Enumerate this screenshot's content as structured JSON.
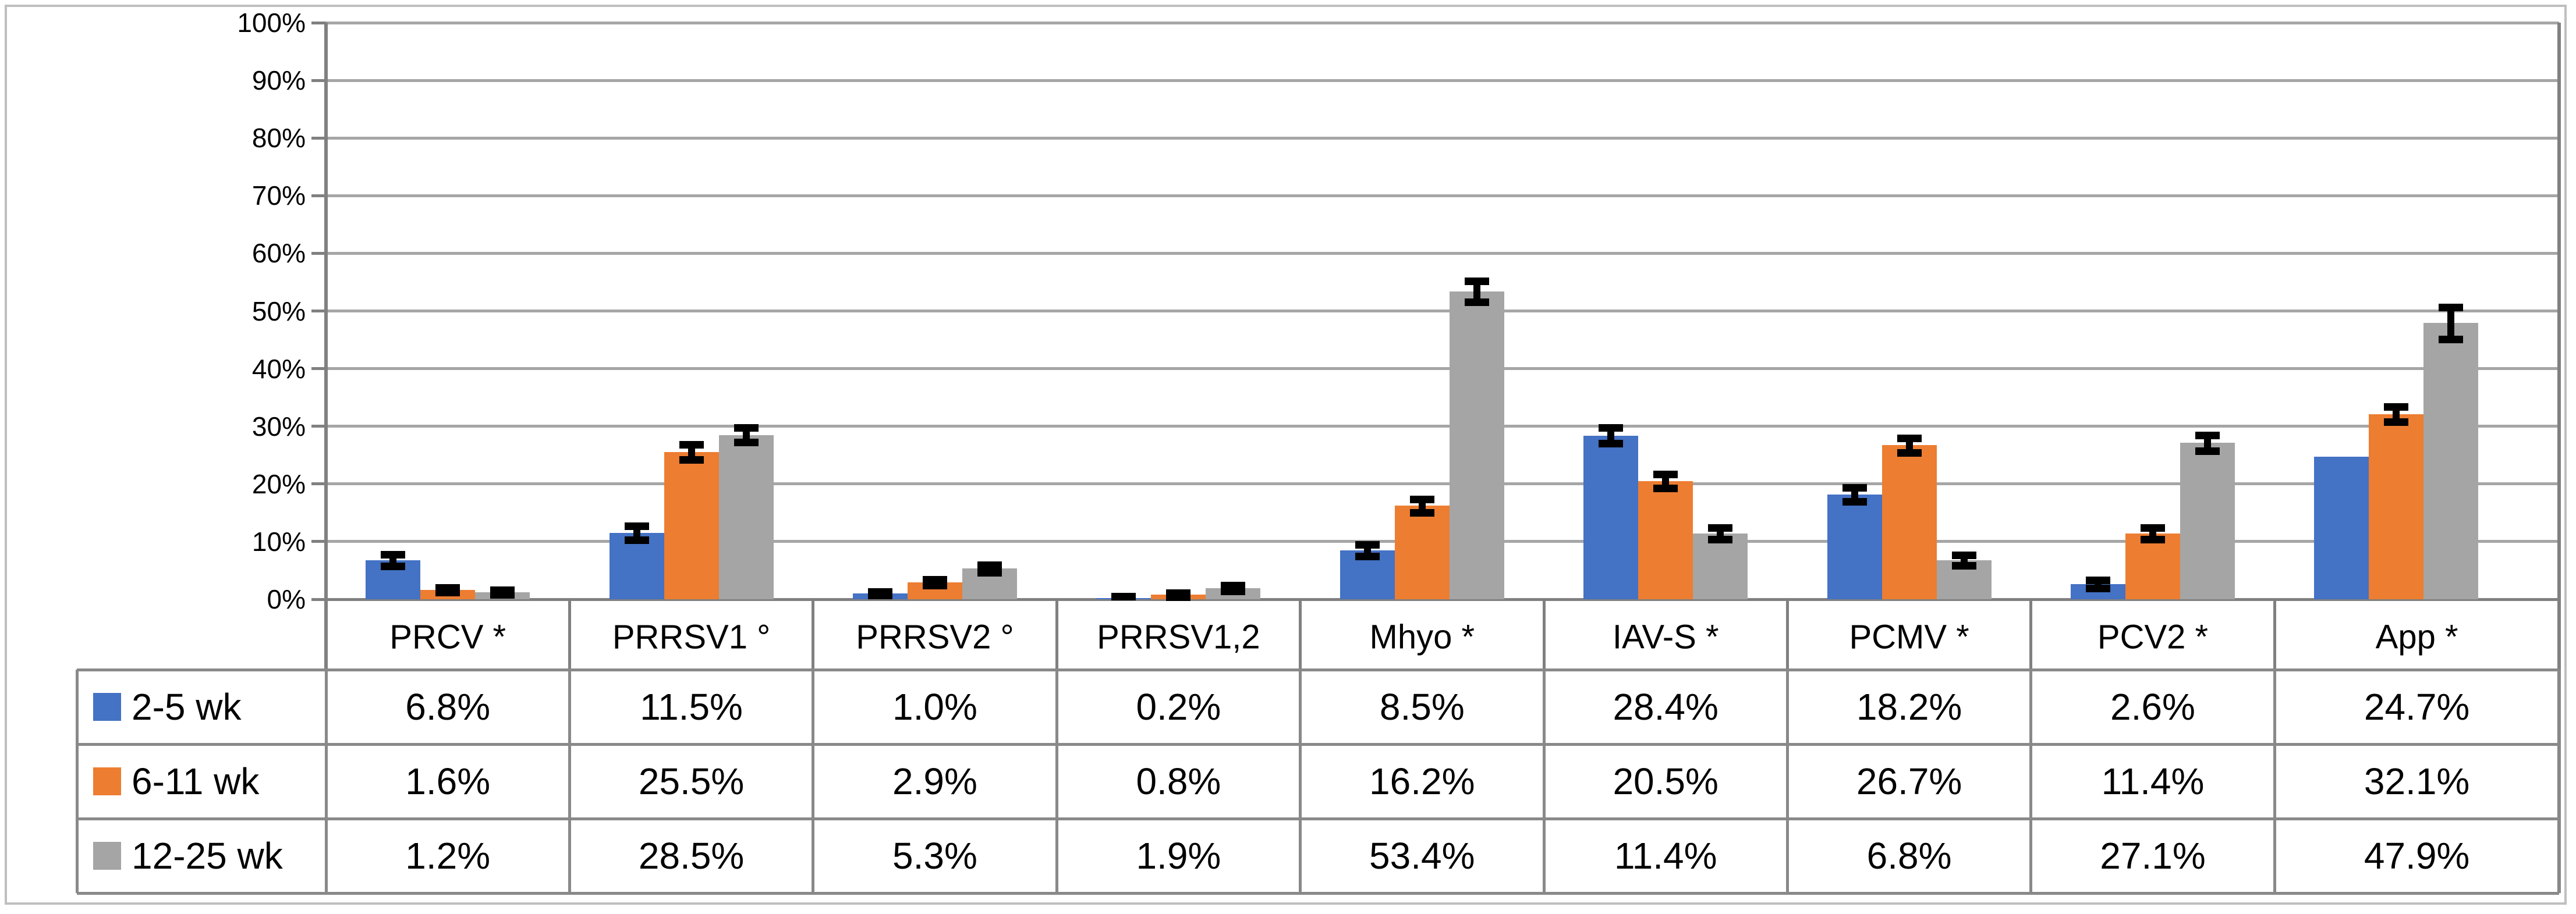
{
  "chart_data": {
    "type": "bar",
    "title": "",
    "categories": [
      "PRCV *",
      "PRRSV1 °",
      "PRRSV2 °",
      "PRRSV1,2",
      "Mhyo *",
      "IAV-S *",
      "PCMV *",
      "PCV2 *",
      "App *"
    ],
    "series": [
      {
        "name": "2-5 wk",
        "color": "#4472C4",
        "values": [
          6.8,
          11.5,
          1.0,
          0.2,
          8.5,
          28.4,
          18.2,
          2.6,
          24.7
        ],
        "errors": [
          1.0,
          1.2,
          0.3,
          0.3,
          1.0,
          1.4,
          1.2,
          0.7,
          0
        ]
      },
      {
        "name": "6-11 wk",
        "color": "#ED7D31",
        "values": [
          1.6,
          25.5,
          2.9,
          0.8,
          16.2,
          20.5,
          26.7,
          11.4,
          32.1
        ],
        "errors": [
          0.4,
          1.3,
          0.5,
          0.35,
          1.2,
          1.2,
          1.3,
          1.0,
          1.3
        ]
      },
      {
        "name": "12-25 wk",
        "color": "#A5A5A5",
        "values": [
          1.2,
          28.5,
          5.3,
          1.9,
          53.4,
          11.4,
          6.8,
          27.1,
          47.9
        ],
        "errors": [
          0.4,
          1.3,
          0.7,
          0.5,
          1.8,
          1.0,
          0.9,
          1.4,
          2.8
        ]
      }
    ],
    "y_axis": {
      "min": 0,
      "max": 100,
      "step": 10,
      "tick_labels": [
        "0%",
        "10%",
        "20%",
        "30%",
        "40%",
        "50%",
        "60%",
        "70%",
        "80%",
        "90%",
        "100%"
      ]
    },
    "xlabel": "",
    "ylabel": "",
    "grid": true,
    "legend_position": "data-table-left",
    "error_bars": true,
    "value_format": "percent_one_decimal"
  },
  "data_table": {
    "rows": [
      {
        "label": "2-5 wk",
        "swatch_color": "#4472C4",
        "values": [
          "6.8%",
          "11.5%",
          "1.0%",
          "0.2%",
          "8.5%",
          "28.4%",
          "18.2%",
          "2.6%",
          "24.7%"
        ]
      },
      {
        "label": "6-11 wk",
        "swatch_color": "#ED7D31",
        "values": [
          "1.6%",
          "25.5%",
          "2.9%",
          "0.8%",
          "16.2%",
          "20.5%",
          "26.7%",
          "11.4%",
          "32.1%"
        ]
      },
      {
        "label": "12-25 wk",
        "swatch_color": "#A5A5A5",
        "values": [
          "1.2%",
          "28.5%",
          "5.3%",
          "1.9%",
          "53.4%",
          "11.4%",
          "6.8%",
          "27.1%",
          "47.9%"
        ]
      }
    ]
  },
  "colors": {
    "series_blue": "#4472C4",
    "series_orange": "#ED7D31",
    "series_gray": "#A5A5A5",
    "gridline": "#A6A6A6",
    "axis_line": "#808080",
    "table_border": "#898989",
    "figure_border": "#BFBFBF",
    "error_bar": "#000000",
    "background": "#FFFFFF",
    "text": "#000000"
  }
}
